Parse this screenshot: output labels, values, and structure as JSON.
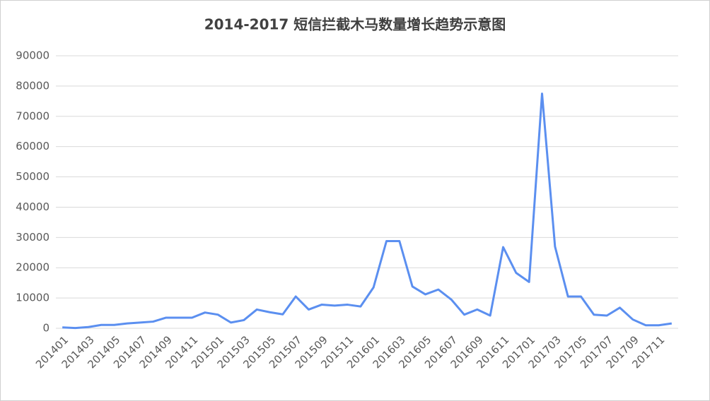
{
  "chart_data": {
    "type": "line",
    "title": "2014-2017 短信拦截木马数量增长趋势示意图",
    "categories": [
      "201401",
      null,
      "201403",
      null,
      "201405",
      null,
      "201407",
      null,
      "201409",
      null,
      "201411",
      null,
      "201501",
      null,
      "201503",
      null,
      "201505",
      null,
      "201507",
      null,
      "201509",
      null,
      "201511",
      null,
      "201601",
      null,
      "201603",
      null,
      "201605",
      null,
      "201607",
      null,
      "201609",
      null,
      "201611",
      null,
      "201701",
      null,
      "201703",
      null,
      "201705",
      null,
      "201707",
      null,
      "201709",
      null,
      "201711",
      null
    ],
    "values": [
      300,
      100,
      400,
      1100,
      1100,
      1600,
      1900,
      2200,
      3500,
      3500,
      3500,
      5200,
      4500,
      1900,
      2700,
      6200,
      5300,
      4600,
      10500,
      6200,
      7800,
      7500,
      7800,
      7200,
      13500,
      28800,
      28800,
      13800,
      11200,
      12800,
      9500,
      4500,
      6200,
      4200,
      26800,
      18300,
      15300,
      77500,
      27000,
      10500,
      10500,
      4500,
      4200,
      6800,
      2900,
      1000,
      1000,
      1600
    ],
    "color": "#5b8ff0",
    "ylim": [
      0,
      90000
    ],
    "yticks": [
      0,
      10000,
      20000,
      30000,
      40000,
      50000,
      60000,
      70000,
      80000,
      90000
    ],
    "grid": true
  }
}
